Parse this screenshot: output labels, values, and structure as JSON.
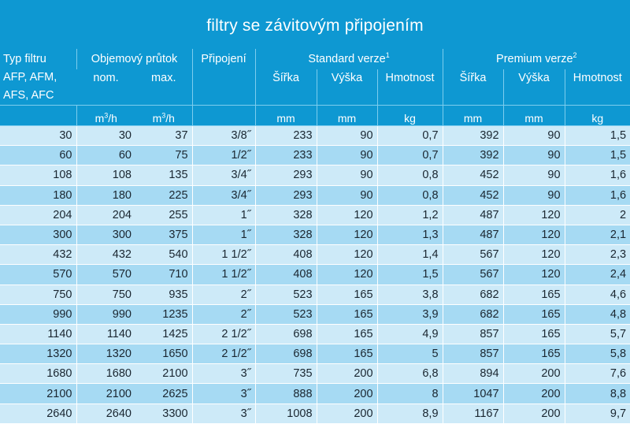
{
  "title": "filtry se závitovým připojením",
  "headers": {
    "type_line1": "Typ filtru",
    "type_line2": "AFP, AFM,",
    "type_line3": "AFS, AFC",
    "flow": "Objemový průtok",
    "flow_nom": "nom.",
    "flow_max": "max.",
    "connection": "Připojení",
    "standard": "Standard verze",
    "standard_sup": "1",
    "premium": "Premium verze",
    "premium_sup": "2",
    "width": "Šířka",
    "height": "Výška",
    "weight": "Hmotnost"
  },
  "units": {
    "flow_nom": "m",
    "flow_nom_sup": "3",
    "flow_nom_suffix": "/h",
    "flow_max": "m",
    "flow_max_sup": "3",
    "flow_max_suffix": "/h",
    "std_width": "mm",
    "std_height": "mm",
    "std_weight": "kg",
    "prm_width": "mm",
    "prm_height": "mm",
    "prm_weight": "kg"
  },
  "columns": [
    "type",
    "nom",
    "max",
    "conn",
    "std_w",
    "std_h",
    "std_kg",
    "prm_w",
    "prm_h",
    "prm_kg"
  ],
  "rows": [
    [
      "30",
      "30",
      "37",
      "3/8˝",
      "233",
      "90",
      "0,7",
      "392",
      "90",
      "1,5"
    ],
    [
      "60",
      "60",
      "75",
      "1/2˝",
      "233",
      "90",
      "0,7",
      "392",
      "90",
      "1,5"
    ],
    [
      "108",
      "108",
      "135",
      "3/4˝",
      "293",
      "90",
      "0,8",
      "452",
      "90",
      "1,6"
    ],
    [
      "180",
      "180",
      "225",
      "3/4˝",
      "293",
      "90",
      "0,8",
      "452",
      "90",
      "1,6"
    ],
    [
      "204",
      "204",
      "255",
      "1˝",
      "328",
      "120",
      "1,2",
      "487",
      "120",
      "2"
    ],
    [
      "300",
      "300",
      "375",
      "1˝",
      "328",
      "120",
      "1,3",
      "487",
      "120",
      "2,1"
    ],
    [
      "432",
      "432",
      "540",
      "1 1/2˝",
      "408",
      "120",
      "1,4",
      "567",
      "120",
      "2,3"
    ],
    [
      "570",
      "570",
      "710",
      "1 1/2˝",
      "408",
      "120",
      "1,5",
      "567",
      "120",
      "2,4"
    ],
    [
      "750",
      "750",
      "935",
      "2˝",
      "523",
      "165",
      "3,8",
      "682",
      "165",
      "4,6"
    ],
    [
      "990",
      "990",
      "1235",
      "2˝",
      "523",
      "165",
      "3,9",
      "682",
      "165",
      "4,8"
    ],
    [
      "1140",
      "1140",
      "1425",
      "2 1/2˝",
      "698",
      "165",
      "4,9",
      "857",
      "165",
      "5,7"
    ],
    [
      "1320",
      "1320",
      "1650",
      "2 1/2˝",
      "698",
      "165",
      "5",
      "857",
      "165",
      "5,8"
    ],
    [
      "1680",
      "1680",
      "2100",
      "3˝",
      "735",
      "200",
      "6,8",
      "894",
      "200",
      "7,6"
    ],
    [
      "2100",
      "2100",
      "2625",
      "3˝",
      "888",
      "200",
      "8",
      "1047",
      "200",
      "8,8"
    ],
    [
      "2640",
      "2640",
      "3300",
      "3˝",
      "1008",
      "200",
      "8,9",
      "1167",
      "200",
      "9,7"
    ]
  ],
  "colors": {
    "header_bg": "#0e98d2",
    "row_light": "#cdeaf8",
    "row_dark": "#a6daf3"
  }
}
